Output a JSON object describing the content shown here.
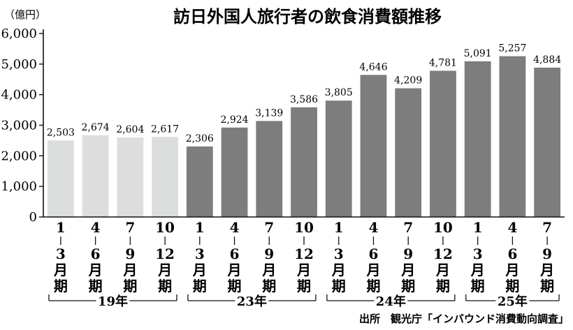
{
  "chart_data": {
    "type": "bar",
    "title": "訪日外国人旅行者の飲食消費額推移",
    "ylabel": "（億円）",
    "ylim": [
      0,
      6000
    ],
    "yticks": [
      "0",
      "1,000",
      "2,000",
      "3,000",
      "4,000",
      "5,000",
      "6,000"
    ],
    "categories": [
      [
        "1",
        "3",
        "月",
        "期"
      ],
      [
        "4",
        "6",
        "月",
        "期"
      ],
      [
        "7",
        "9",
        "月",
        "期"
      ],
      [
        "10",
        "12",
        "月",
        "期"
      ],
      [
        "1",
        "3",
        "月",
        "期"
      ],
      [
        "4",
        "6",
        "月",
        "期"
      ],
      [
        "7",
        "9",
        "月",
        "期"
      ],
      [
        "10",
        "12",
        "月",
        "期"
      ],
      [
        "1",
        "3",
        "月",
        "期"
      ],
      [
        "4",
        "6",
        "月",
        "期"
      ],
      [
        "7",
        "9",
        "月",
        "期"
      ],
      [
        "10",
        "12",
        "月",
        "期"
      ],
      [
        "1",
        "3",
        "月",
        "期"
      ],
      [
        "4",
        "6",
        "月",
        "期"
      ],
      [
        "7",
        "9",
        "月",
        "期"
      ]
    ],
    "values": [
      2503,
      2674,
      2604,
      2617,
      2306,
      2924,
      3139,
      3586,
      3805,
      4646,
      4209,
      4781,
      5091,
      5257,
      4884
    ],
    "value_labels": [
      "2,503",
      "2,674",
      "2,604",
      "2,617",
      "2,306",
      "2,924",
      "3,139",
      "3,586",
      "3,805",
      "4,646",
      "4,209",
      "4,781",
      "5,091",
      "5,257",
      "4,884"
    ],
    "year_groups": [
      {
        "label": "19年",
        "start": 0,
        "end": 3
      },
      {
        "label": "23年",
        "start": 4,
        "end": 7
      },
      {
        "label": "24年",
        "start": 8,
        "end": 11
      },
      {
        "label": "25年",
        "start": 12,
        "end": 14
      }
    ],
    "source": "出所　観光庁「インバウンド消費動向調査」",
    "colors": {
      "group_2019": "#dcdddd",
      "group_later": "#7d7d7d"
    }
  }
}
